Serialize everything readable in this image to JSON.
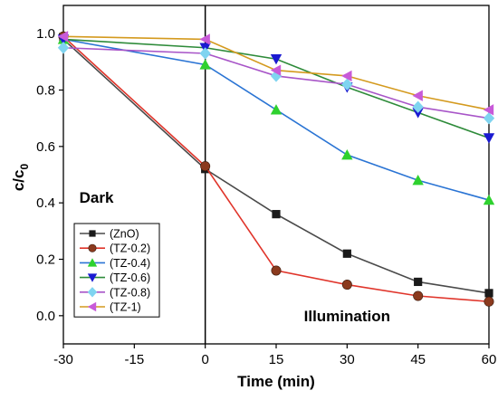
{
  "chart_data": {
    "type": "line",
    "xlabel": "Time (min)",
    "ylabel_main": "c/c",
    "ylabel_sub": "0",
    "xlim": [
      -30,
      60
    ],
    "ylim": [
      -0.1,
      1.1
    ],
    "xticks": [
      -30,
      -15,
      0,
      15,
      30,
      45,
      60
    ],
    "yticks": [
      0.0,
      0.2,
      0.4,
      0.6,
      0.8,
      1.0
    ],
    "ytick_labels": [
      "0.0",
      "0.2",
      "0.4",
      "0.6",
      "0.8",
      "1.0"
    ],
    "divider_x": 0,
    "annotations": [
      {
        "text": "Dark",
        "x": -23,
        "y": 0.42
      },
      {
        "text": "Illumination",
        "x": 30,
        "y": 0.0
      }
    ],
    "legend_position": "center-left",
    "series": [
      {
        "name": "(ZnO)",
        "color": "#1a1a1a",
        "line_color": "#4a4a4a",
        "marker": "square",
        "x": [
          -30,
          0,
          15,
          30,
          45,
          60
        ],
        "y": [
          0.98,
          0.52,
          0.36,
          0.22,
          0.12,
          0.08
        ]
      },
      {
        "name": "(TZ-0.2)",
        "color": "#8b3a1e",
        "line_color": "#e0342a",
        "marker": "circle",
        "x": [
          -30,
          0,
          15,
          30,
          45,
          60
        ],
        "y": [
          0.99,
          0.53,
          0.16,
          0.11,
          0.07,
          0.05
        ]
      },
      {
        "name": "(TZ-0.4)",
        "color": "#2ed12e",
        "line_color": "#2a74d4",
        "marker": "triangle-up",
        "x": [
          -30,
          0,
          15,
          30,
          45,
          60
        ],
        "y": [
          0.98,
          0.89,
          0.73,
          0.57,
          0.48,
          0.41
        ]
      },
      {
        "name": "(TZ-0.6)",
        "color": "#1a1ad1",
        "line_color": "#2e8b3a",
        "marker": "triangle-down",
        "x": [
          -30,
          0,
          15,
          30,
          45,
          60
        ],
        "y": [
          0.98,
          0.95,
          0.91,
          0.81,
          0.72,
          0.63
        ]
      },
      {
        "name": "(TZ-0.8)",
        "color": "#7fd4f0",
        "line_color": "#a855c8",
        "marker": "diamond",
        "x": [
          -30,
          0,
          15,
          30,
          45,
          60
        ],
        "y": [
          0.95,
          0.93,
          0.85,
          0.82,
          0.74,
          0.7
        ]
      },
      {
        "name": "(TZ-1)",
        "color": "#c85ad8",
        "line_color": "#d49a1e",
        "marker": "triangle-left",
        "x": [
          -30,
          0,
          15,
          30,
          45,
          60
        ],
        "y": [
          0.99,
          0.98,
          0.87,
          0.85,
          0.78,
          0.73
        ]
      }
    ]
  }
}
